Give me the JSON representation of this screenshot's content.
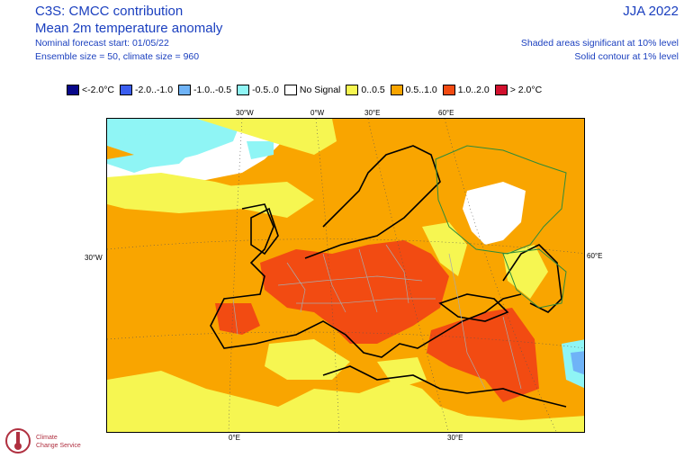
{
  "header": {
    "title": "C3S: CMCC contribution",
    "subtitle": "Mean 2m temperature anomaly",
    "forecast_start": "Nominal forecast start: 01/05/22",
    "ensemble": "Ensemble size = 50, climate size = 960",
    "season": "JJA 2022",
    "note_shaded": "Shaded areas significant at 10% level",
    "note_contour": "Solid contour at 1% level"
  },
  "legend": [
    {
      "label": "<-2.0°C",
      "color": "#08088a"
    },
    {
      "label": "-2.0..-1.0",
      "color": "#3b5ef0"
    },
    {
      "label": "-1.0..-0.5",
      "color": "#6fb3f7"
    },
    {
      "label": "-0.5..0",
      "color": "#8ff5f5"
    },
    {
      "label": "No Signal",
      "color": "#ffffff"
    },
    {
      "label": "0..0.5",
      "color": "#f6f651"
    },
    {
      "label": "0.5..1.0",
      "color": "#f9a500"
    },
    {
      "label": "1.0..2.0",
      "color": "#f24b12"
    },
    {
      "label": "> 2.0°C",
      "color": "#d2112e"
    }
  ],
  "map": {
    "top_ticks": [
      "30°W",
      "0°W",
      "30°E",
      "60°E"
    ],
    "bottom_ticks": [
      "0°E",
      "30°E"
    ],
    "left_ticks": [
      "30°W"
    ],
    "right_ticks": [
      "60°E"
    ],
    "colors": {
      "sea": "#f9a500",
      "cyan": "#8ff5f5",
      "yellow": "#f6f651",
      "red": "#f24b12",
      "white": "#ffffff",
      "contour": "#2e8b3a"
    }
  },
  "logo": {
    "name_line1": "Climate",
    "name_line2": "Change Service"
  }
}
